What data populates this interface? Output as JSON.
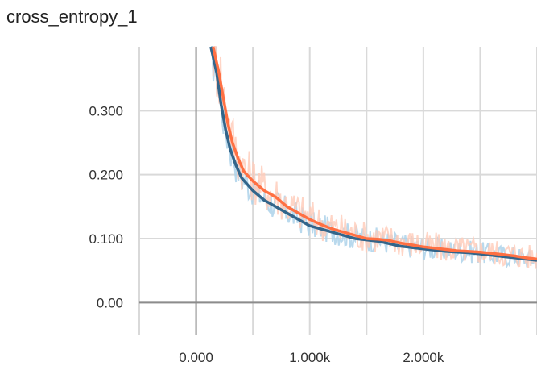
{
  "chart_data": {
    "type": "line",
    "title": "cross_entropy_1",
    "xlabel": "",
    "ylabel": "",
    "xlim": [
      -0.5,
      3.0
    ],
    "ylim": [
      -0.05,
      0.4
    ],
    "x_ticks": [
      0,
      1,
      2
    ],
    "x_tick_labels": [
      "0.000",
      "1.000k",
      "2.000k"
    ],
    "y_ticks": [
      0,
      0.1,
      0.2,
      0.3
    ],
    "y_tick_labels": [
      "0.00",
      "0.100",
      "0.200",
      "0.300"
    ],
    "grid": true,
    "x_unit": "k steps",
    "series": [
      {
        "color": "#33658a",
        "raw_color": "#a8cfe8",
        "x": [
          0.13,
          0.18,
          0.22,
          0.26,
          0.3,
          0.35,
          0.4,
          0.5,
          0.6,
          0.7,
          0.8,
          0.9,
          1.0,
          1.1,
          1.2,
          1.3,
          1.4,
          1.5,
          1.6,
          1.7,
          1.8,
          1.9,
          2.0,
          2.1,
          2.2,
          2.3,
          2.4,
          2.5,
          2.6,
          2.7,
          2.8,
          2.9,
          3.0
        ],
        "values": [
          0.4,
          0.36,
          0.31,
          0.27,
          0.24,
          0.215,
          0.195,
          0.175,
          0.16,
          0.15,
          0.14,
          0.13,
          0.12,
          0.115,
          0.11,
          0.105,
          0.1,
          0.098,
          0.096,
          0.092,
          0.088,
          0.086,
          0.084,
          0.082,
          0.08,
          0.079,
          0.078,
          0.076,
          0.074,
          0.072,
          0.07,
          0.068,
          0.066
        ]
      },
      {
        "color": "#ff7043",
        "raw_color": "#ffcab8",
        "x": [
          0.15,
          0.2,
          0.24,
          0.28,
          0.32,
          0.37,
          0.42,
          0.5,
          0.6,
          0.7,
          0.8,
          0.9,
          1.0,
          1.1,
          1.2,
          1.3,
          1.4,
          1.5,
          1.6,
          1.7,
          1.8,
          1.9,
          2.0,
          2.1,
          2.2,
          2.3,
          2.4,
          2.5,
          2.6,
          2.7,
          2.8,
          2.9,
          3.0
        ],
        "values": [
          0.4,
          0.36,
          0.32,
          0.28,
          0.25,
          0.225,
          0.205,
          0.19,
          0.175,
          0.165,
          0.15,
          0.14,
          0.13,
          0.122,
          0.115,
          0.11,
          0.105,
          0.1,
          0.099,
          0.097,
          0.093,
          0.09,
          0.087,
          0.085,
          0.083,
          0.081,
          0.08,
          0.079,
          0.077,
          0.075,
          0.073,
          0.07,
          0.068
        ]
      }
    ]
  }
}
